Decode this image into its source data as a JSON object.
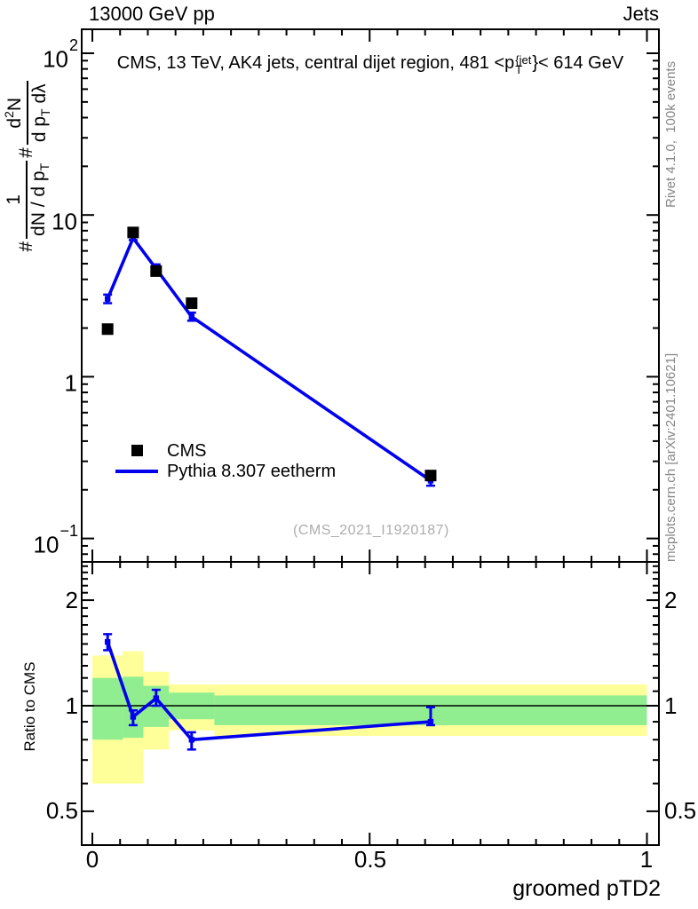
{
  "header": {
    "left": "13000 GeV pp",
    "right": "Jets"
  },
  "plot_title": {
    "prefix": "CMS, 13 TeV, AK4 jets, central dijet region, 481 <p",
    "sup": "{jet",
    "sub": "T",
    "suffix": "}< 614 GeV"
  },
  "y_axis_label": {
    "hash1": "#",
    "frac1_num": "1",
    "frac1_den_main": "dN / d p",
    "frac1_den_sub": "T",
    "hash2": "#",
    "frac2_num_pre": "d",
    "frac2_num_exp": "2",
    "frac2_num_post": "N",
    "frac2_den_main": "d p",
    "frac2_den_sub": "T",
    "frac2_den_post": " dλ"
  },
  "x_axis_label": "groomed pTD2",
  "ratio_axis_label": "Ratio to CMS",
  "legend": {
    "items": [
      {
        "label": "CMS",
        "marker": "black-square"
      },
      {
        "label": "Pythia 8.307 eetherm",
        "marker": "blue-line"
      }
    ]
  },
  "watermark": "(CMS_2021_I1920187)",
  "side_notes": {
    "generator": "Rivet 4.1.0,  100k events",
    "site": "mcplots.cern.ch [arXiv:2401.10621]"
  },
  "tick_labels": {
    "main_y": [
      {
        "base": "10",
        "exp": "2"
      },
      {
        "base": "10",
        "exp": ""
      },
      {
        "base": "1",
        "exp": ""
      },
      {
        "base": "10",
        "exp": "−1"
      }
    ],
    "x": [
      "0",
      "0.5",
      "1"
    ],
    "ratio_left": [
      "2",
      "1",
      "0.5"
    ],
    "ratio_right": [
      "2",
      "1",
      "0.5"
    ]
  },
  "chart_data": {
    "type": "line",
    "title": "CMS, 13 TeV, AK4 jets, central dijet region, 481 <pT^{jet}< 614 GeV",
    "xlabel": "groomed pTD2",
    "ylabel": "# 1/(dN/dpT) # d2N/(dpT dλ)",
    "x_axis": {
      "range": [
        -0.02,
        1.02
      ],
      "major_ticks": [
        0,
        0.5,
        1
      ],
      "minor_step": 0.05
    },
    "main_panel": {
      "y_scale": "log",
      "y_range": [
        0.072,
        140
      ],
      "y_major_ticks": [
        0.1,
        1,
        10,
        100
      ]
    },
    "ratio_panel": {
      "label": "Ratio to CMS",
      "y_scale": "log",
      "y_range": [
        0.4,
        2.57
      ],
      "y_labeled_ticks": [
        0.5,
        1,
        2
      ]
    },
    "bin_edges": [
      0,
      0.055,
      0.092,
      0.138,
      0.22,
      1.0
    ],
    "x": [
      0.0275,
      0.0735,
      0.115,
      0.179,
      0.61
    ],
    "series": [
      {
        "name": "CMS",
        "type": "points",
        "marker": "square",
        "color": "#000000",
        "y": [
          1.97,
          7.8,
          4.5,
          2.85,
          0.245
        ]
      },
      {
        "name": "Pythia 8.307 eetherm",
        "type": "line+errorbars",
        "color": "#0000ee",
        "y": [
          3.03,
          7.2,
          4.65,
          2.35,
          0.228
        ],
        "y_err_lo": [
          2.85,
          7.0,
          4.42,
          2.22,
          0.212
        ],
        "y_err_hi": [
          3.22,
          7.45,
          4.95,
          2.49,
          0.245
        ]
      }
    ],
    "ratio": {
      "name": "Pythia 8.307 eetherm / CMS",
      "y": [
        1.52,
        0.93,
        1.05,
        0.8,
        0.9
      ],
      "y_err_lo": [
        1.44,
        0.88,
        1.0,
        0.75,
        0.88
      ],
      "y_err_hi": [
        1.6,
        0.97,
        1.11,
        0.84,
        0.99
      ],
      "yellow_band": [
        [
          0.6,
          1.39
        ],
        [
          0.6,
          1.43
        ],
        [
          0.75,
          1.25
        ],
        [
          0.85,
          1.15
        ],
        [
          0.82,
          1.15
        ]
      ],
      "green_band": [
        [
          0.8,
          1.2
        ],
        [
          0.81,
          1.21
        ],
        [
          0.87,
          1.14
        ],
        [
          0.915,
          1.09
        ],
        [
          0.88,
          1.07
        ]
      ]
    },
    "style": {
      "blue": "#0000ee",
      "yellow": "#ffff99",
      "green": "#90ee90",
      "frame": "#000000"
    }
  }
}
